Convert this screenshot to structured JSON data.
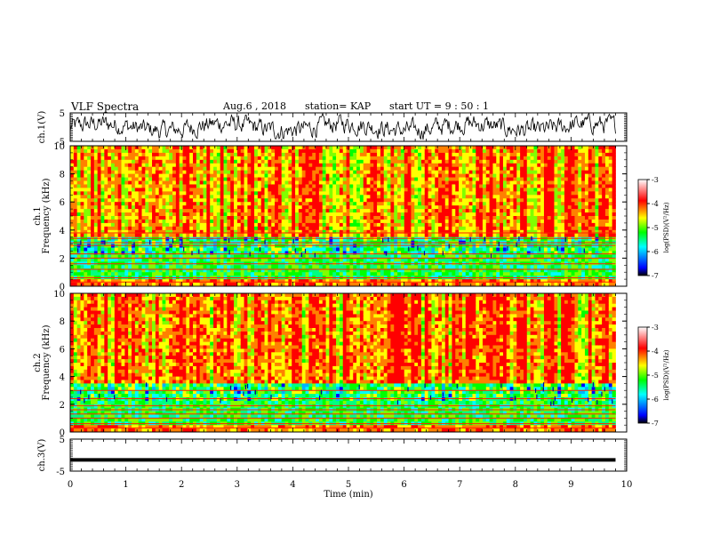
{
  "header": {
    "title": "VLF Spectra",
    "date": "Aug.6 , 2018",
    "station": "station= KAP",
    "start_ut": "start UT = 9 : 50 : 1"
  },
  "chart_data": [
    {
      "type": "line",
      "name": "ch1-waveform",
      "ylabel": "ch.1(V)",
      "ylim": [
        -5,
        5
      ],
      "yticks": [
        "5",
        "-5"
      ],
      "xlim": [
        0,
        10
      ],
      "description_values": "noisy waveform oscillating mostly between about -4 V and +4 V across 0-9.8 min"
    },
    {
      "type": "heatmap",
      "name": "ch1-spectrogram",
      "ylabel": "ch.1\nFrequency (kHz)",
      "ylim": [
        0,
        10
      ],
      "yticks": [
        "0",
        "2",
        "4",
        "6",
        "8",
        "10"
      ],
      "xlim": [
        0,
        10
      ],
      "data_xmax": 9.8,
      "colorbar": {
        "label": "log(PSD)(V²/Hz)",
        "range": [
          -7,
          -3
        ],
        "ticks": [
          "-3",
          "-4",
          "-5",
          "-6",
          "-7"
        ],
        "colors": [
          "#000000",
          "#0000ff",
          "#00ffff",
          "#00ff00",
          "#ffff00",
          "#ff0000",
          "#ffffff"
        ]
      },
      "bands_khz": [
        0.3,
        0.6,
        1.2,
        1.6,
        2.0,
        2.3,
        2.9,
        3.1,
        3.4,
        3.8
      ]
    },
    {
      "type": "heatmap",
      "name": "ch2-spectrogram",
      "ylabel": "ch.2\nFrequency (kHz)",
      "ylim": [
        0,
        10
      ],
      "yticks": [
        "0",
        "2",
        "4",
        "6",
        "8",
        "10"
      ],
      "xlim": [
        0,
        10
      ],
      "data_xmax": 9.8,
      "colorbar": {
        "label": "log(PSD)(V²/Hz)",
        "range": [
          -7,
          -3
        ],
        "ticks": [
          "-3",
          "-4",
          "-5",
          "-6",
          "-7"
        ],
        "colors": [
          "#000000",
          "#0000ff",
          "#00ffff",
          "#00ff00",
          "#ffff00",
          "#ff0000",
          "#ffffff"
        ]
      },
      "bands_khz": [
        0.3,
        0.6,
        1.0,
        1.3,
        1.6,
        1.9,
        2.4,
        3.0
      ]
    },
    {
      "type": "line",
      "name": "ch3-waveform",
      "ylabel": "ch.3(V)",
      "ylim": [
        -5,
        5
      ],
      "yticks": [
        "5",
        "-5"
      ],
      "xlim": [
        0,
        10
      ],
      "level": -1.5,
      "data_xmax": 9.8,
      "xlabel": "Time (min)",
      "xticks": [
        "0",
        "1",
        "2",
        "3",
        "4",
        "5",
        "6",
        "7",
        "8",
        "9",
        "10"
      ]
    }
  ]
}
